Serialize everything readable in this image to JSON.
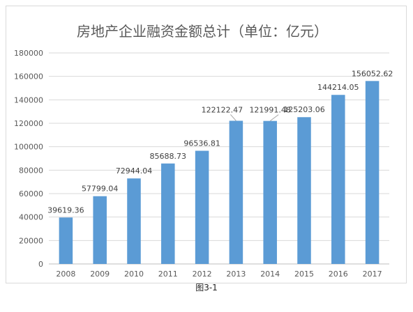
{
  "chart_data": {
    "type": "bar",
    "title": "房地产企业融资金额总计（单位：亿元）",
    "categories": [
      "2008",
      "2009",
      "2010",
      "2011",
      "2012",
      "2013",
      "2014",
      "2015",
      "2016",
      "2017"
    ],
    "values": [
      39619.36,
      57799.04,
      72944.04,
      85688.73,
      96536.81,
      122122.47,
      121991.48,
      125203.06,
      144214.05,
      156052.62
    ],
    "data_labels": [
      "39619.36",
      "57799.04",
      "72944.04",
      "85688.73",
      "96536.81",
      "122122.47",
      "121991.48",
      "125203.06",
      "144214.05",
      "156052.62"
    ],
    "y_ticks": [
      "0",
      "20000",
      "40000",
      "60000",
      "80000",
      "100000",
      "120000",
      "140000",
      "160000",
      "180000"
    ],
    "ylim": [
      0,
      180000
    ],
    "grid": true,
    "bar_color": "#5B9BD5",
    "grid_color": "#d9d9d9"
  },
  "caption": "图3-1"
}
